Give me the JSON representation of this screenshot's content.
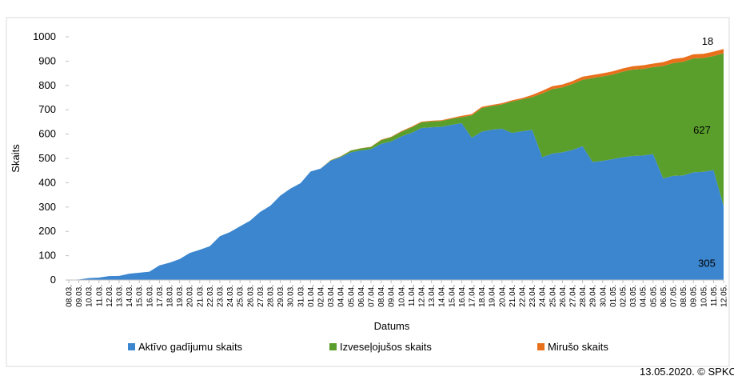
{
  "chart_data": {
    "type": "stacked-area",
    "x_label": "Datums",
    "y_label": "Skaits",
    "source": "13.05.2020. © SPKC",
    "categories": [
      "08.03.",
      "09.03.",
      "10.03.",
      "11.03.",
      "12.03.",
      "13.03.",
      "14.03.",
      "15.03.",
      "16.03.",
      "17.03.",
      "18.03.",
      "19.03.",
      "20.03.",
      "21.03.",
      "22.03.",
      "23.03.",
      "24.03.",
      "25.03.",
      "26.03.",
      "27.03.",
      "28.03.",
      "29.03.",
      "30.03.",
      "31.03.",
      "01.04.",
      "02.04.",
      "03.04.",
      "04.04.",
      "05.04.",
      "06.04.",
      "07.04.",
      "08.04.",
      "09.04.",
      "10.04.",
      "11.04.",
      "12.04.",
      "13.04.",
      "14.04.",
      "15.04.",
      "16.04.",
      "17.04.",
      "18.04.",
      "19.04.",
      "20.04.",
      "21.04.",
      "22.04.",
      "23.04.",
      "24.04.",
      "25.04.",
      "26.04.",
      "27.04.",
      "28.04.",
      "29.04.",
      "30.04.",
      "01.05.",
      "02.05.",
      "03.05.",
      "04.05.",
      "05.05.",
      "06.05.",
      "07.05.",
      "08.05.",
      "09.05.",
      "10.05.",
      "11.05.",
      "12.05."
    ],
    "series": [
      {
        "name": "Aktīvo gadījumu skaits",
        "color": "#3b86cf",
        "values": [
          1,
          2,
          8,
          10,
          16,
          17,
          26,
          30,
          34,
          60,
          71,
          86,
          111,
          124,
          139,
          180,
          197,
          221,
          244,
          280,
          305,
          347,
          376,
          398,
          446,
          458,
          490,
          505,
          525,
          533,
          538,
          560,
          570,
          590,
          605,
          625,
          628,
          630,
          638,
          645,
          585,
          610,
          618,
          622,
          605,
          612,
          617,
          505,
          520,
          525,
          535,
          550,
          485,
          490,
          497,
          505,
          510,
          512,
          518,
          418,
          428,
          430,
          443,
          445,
          452,
          305
        ]
      },
      {
        "name": "Izveseļojušos skaits",
        "color": "#5a9f2c",
        "values": [
          0,
          0,
          0,
          0,
          0,
          0,
          0,
          0,
          0,
          0,
          0,
          0,
          0,
          0,
          0,
          0,
          0,
          0,
          0,
          0,
          0,
          0,
          0,
          0,
          0,
          0,
          2,
          3,
          7,
          8,
          9,
          15,
          17,
          19,
          22,
          23,
          24,
          24,
          25,
          25,
          92,
          97,
          97,
          100,
          129,
          131,
          135,
          262,
          265,
          267,
          271,
          273,
          345,
          347,
          348,
          352,
          355,
          356,
          357,
          462,
          464,
          467,
          468,
          468,
          469,
          627
        ]
      },
      {
        "name": "Mirušo skaits",
        "color": "#e8701c",
        "values": [
          0,
          0,
          0,
          0,
          0,
          0,
          0,
          0,
          0,
          0,
          0,
          0,
          0,
          0,
          0,
          0,
          0,
          0,
          0,
          0,
          0,
          0,
          0,
          0,
          0,
          0,
          1,
          1,
          1,
          1,
          1,
          2,
          2,
          3,
          3,
          3,
          3,
          3,
          3,
          5,
          5,
          5,
          5,
          5,
          5,
          5,
          9,
          11,
          12,
          12,
          12,
          13,
          13,
          13,
          13,
          13,
          14,
          15,
          15,
          16,
          17,
          17,
          17,
          17,
          18,
          18
        ]
      }
    ],
    "ylim": [
      0,
      1000
    ],
    "yticks": [
      0,
      100,
      200,
      300,
      400,
      500,
      600,
      700,
      800,
      900,
      1000
    ]
  }
}
